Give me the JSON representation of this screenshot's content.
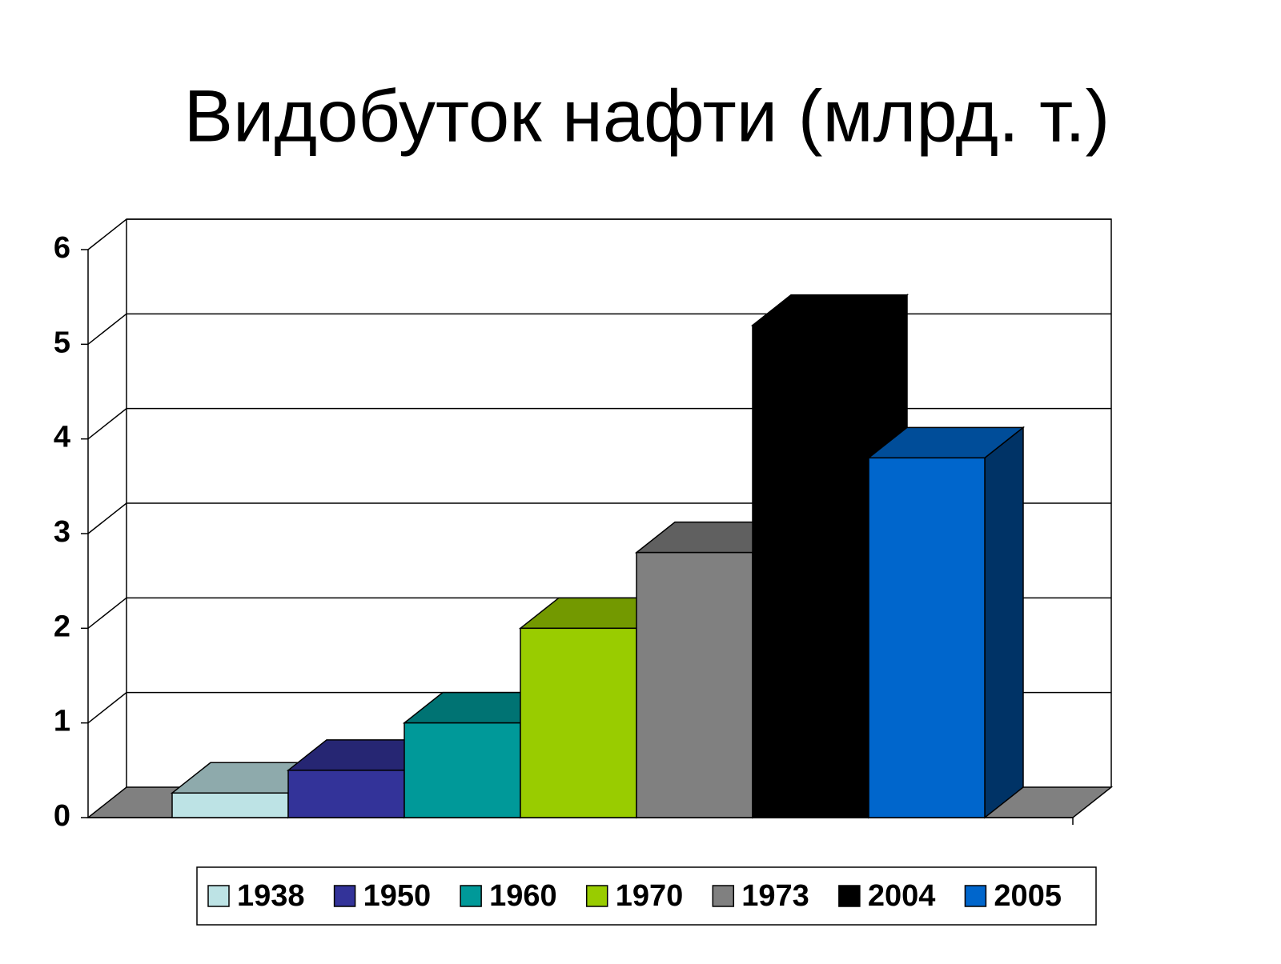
{
  "chart_data": {
    "type": "bar3d",
    "title": "Видобуток нафти (млрд. т.)",
    "categories": [
      null
    ],
    "series": [
      {
        "name": "1938",
        "color": "#bde3e5",
        "values": [
          0.26
        ]
      },
      {
        "name": "1950",
        "color": "#333399",
        "values": [
          0.5
        ]
      },
      {
        "name": "1960",
        "color": "#009999",
        "values": [
          1.0
        ]
      },
      {
        "name": "1970",
        "color": "#99cc00",
        "values": [
          2.0
        ]
      },
      {
        "name": "1973",
        "color": "#808080",
        "values": [
          2.8
        ]
      },
      {
        "name": "2004",
        "color": "#000000",
        "values": [
          5.2
        ]
      },
      {
        "name": "2005",
        "color": "#0066cc",
        "values": [
          3.8
        ]
      }
    ],
    "ylim": [
      0,
      6
    ],
    "yticks": [
      0,
      1,
      2,
      3,
      4,
      5,
      6
    ],
    "grid": true,
    "legend": "bottom"
  }
}
